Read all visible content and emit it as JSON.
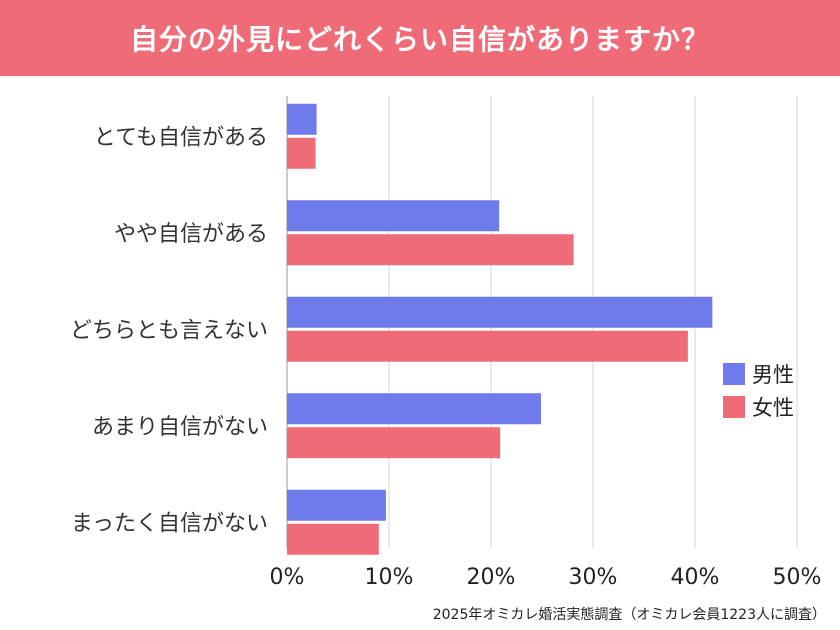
{
  "chart_data": {
    "type": "bar",
    "orientation": "horizontal",
    "title": "自分の外見にどれくらい自信がありますか？",
    "categories": [
      "とても自信がある",
      "やや自信がある",
      "どちらとも言えない",
      "あまり自信がない",
      "まったく自信がない"
    ],
    "series": [
      {
        "name": "男性",
        "color": "#6f7aeb",
        "values": [
          2.9,
          20.8,
          41.7,
          24.9,
          9.7
        ]
      },
      {
        "name": "女性",
        "color": "#f06b78",
        "values": [
          2.8,
          28.1,
          39.3,
          20.9,
          9.0
        ]
      }
    ],
    "xlim": [
      0,
      50
    ],
    "xticks": [
      "0%",
      "10%",
      "20%",
      "30%",
      "40%",
      "50%"
    ],
    "legend_position": "right",
    "grid": true
  },
  "footer": "2025年オミカレ婚活実態調査（オミカレ会員1223人に調査）"
}
